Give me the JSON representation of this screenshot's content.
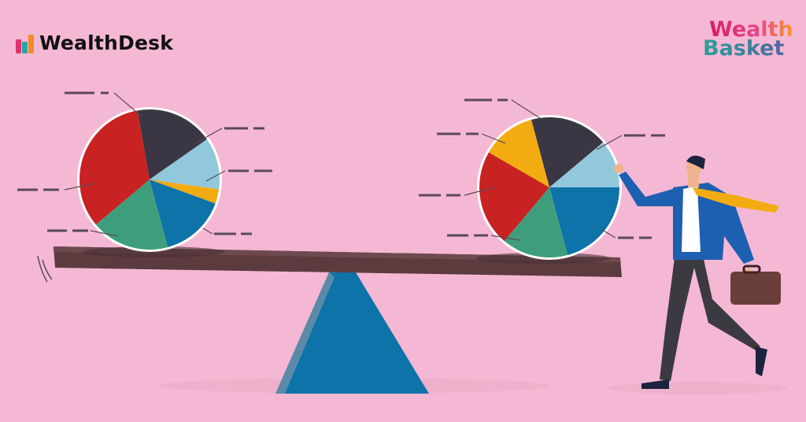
{
  "brand_left": {
    "name": "WealthDesk",
    "icon": "bar-chart-logo-icon",
    "bar_colors": [
      "#e0336f",
      "#23a7a3",
      "#f28c28"
    ]
  },
  "brand_right": {
    "line1": "Wealth",
    "line2": "Basket",
    "icon": "arrow-up-icon"
  },
  "colors": {
    "background": "#f5b8d4",
    "pie_navy": "#3a3644",
    "pie_light_blue": "#92c8dc",
    "pie_yellow": "#f2ac12",
    "pie_blue": "#0e73a8",
    "pie_green": "#3e9e7c",
    "pie_red": "#c92222",
    "plank": "#5c3b3f",
    "fulcrum": "#0e73a8"
  }
}
